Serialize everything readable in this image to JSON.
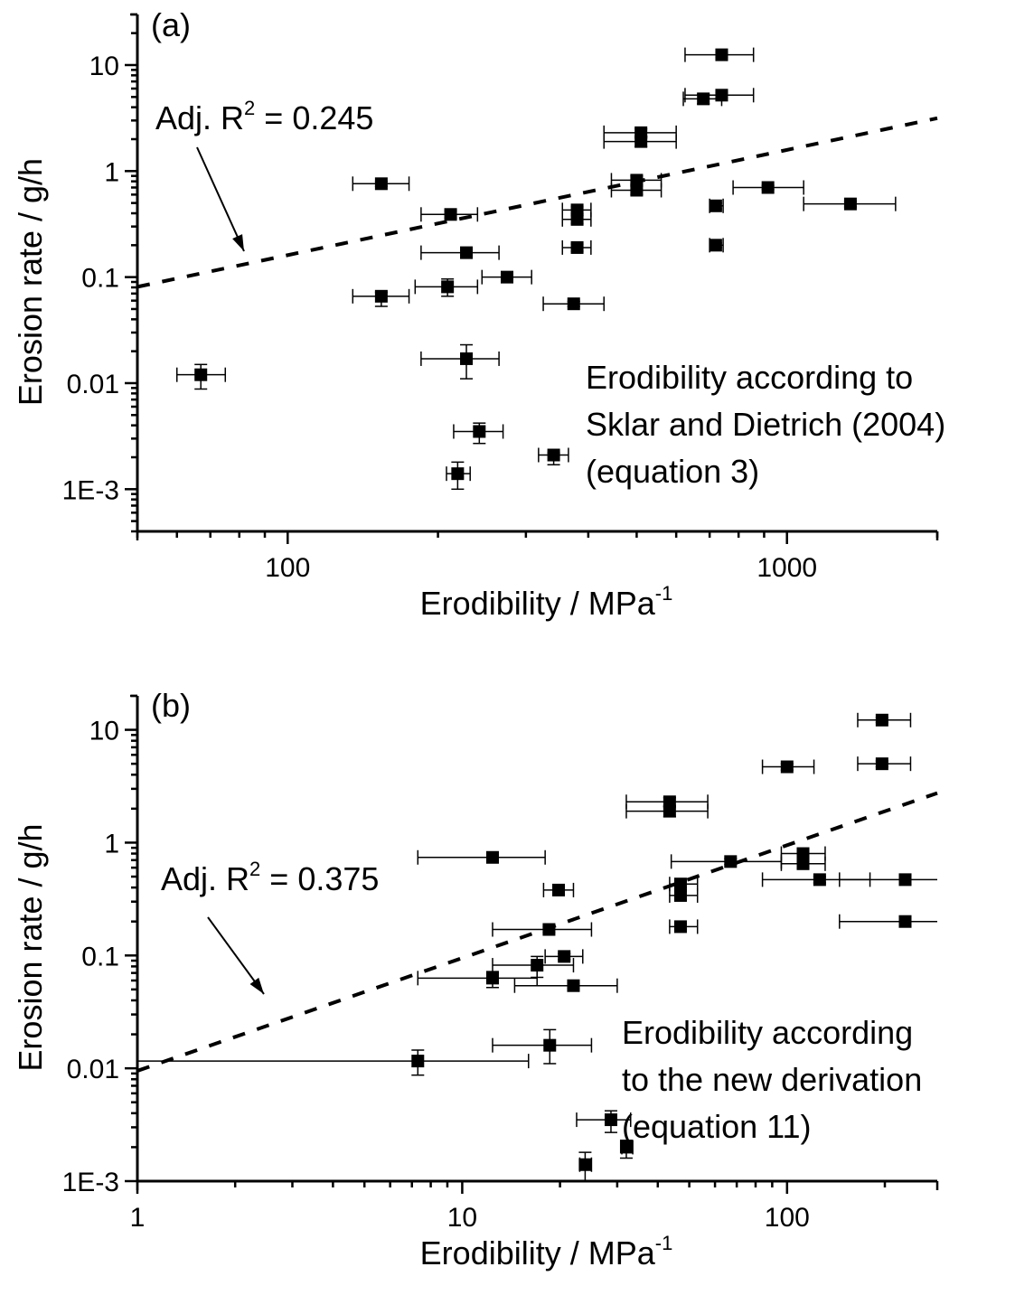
{
  "chart_data": [
    {
      "type": "scatter",
      "panel_label": "(a)",
      "xlabel": "Erodibility / MPa",
      "xlabel_sup": "-1",
      "ylabel": "Erosion rate / g/h",
      "xscale": "log",
      "yscale": "log",
      "xlim": [
        50,
        2000
      ],
      "ylim": [
        0.0004,
        30
      ],
      "xticks": [
        {
          "value": 100,
          "label": "100"
        },
        {
          "value": 1000,
          "label": "1000"
        }
      ],
      "yticks": [
        {
          "value": 0.001,
          "label": "1E-3"
        },
        {
          "value": 0.01,
          "label": "0.01"
        },
        {
          "value": 0.1,
          "label": "0.1"
        },
        {
          "value": 1,
          "label": "1"
        },
        {
          "value": 10,
          "label": "10"
        }
      ],
      "annotation_r2": {
        "prefix": "Adj. R",
        "sup": "2",
        "suffix": " = 0.245"
      },
      "annotation_method": [
        "Erodibility according to",
        "Sklar and Dietrich (2004)",
        "(equation 3)"
      ],
      "fit_line": {
        "style": "dashed",
        "x": [
          50,
          2000
        ],
        "y": [
          0.081,
          3.15
        ]
      },
      "points": [
        {
          "x": 740,
          "y": 12.5,
          "xerr": [
            625,
            857
          ],
          "yerr": [
            11.8,
            13.2
          ]
        },
        {
          "x": 680,
          "y": 4.8,
          "xerr": [
            620,
            740
          ],
          "yerr": [
            4.3,
            5.3
          ]
        },
        {
          "x": 740,
          "y": 5.2,
          "xerr": [
            625,
            857
          ],
          "yerr": [
            4.9,
            5.5
          ]
        },
        {
          "x": 510,
          "y": 2.3,
          "xerr": [
            430,
            600
          ],
          "yerr": [
            2.1,
            2.5
          ]
        },
        {
          "x": 510,
          "y": 1.9,
          "xerr": [
            430,
            600
          ],
          "yerr": [
            1.7,
            2.1
          ]
        },
        {
          "x": 500,
          "y": 0.82,
          "xerr": [
            445,
            560
          ],
          "yerr": [
            0.75,
            0.9
          ]
        },
        {
          "x": 500,
          "y": 0.66,
          "xerr": [
            445,
            560
          ],
          "yerr": [
            0.6,
            0.72
          ]
        },
        {
          "x": 380,
          "y": 0.43,
          "xerr": [
            355,
            405
          ],
          "yerr": [
            0.4,
            0.46
          ]
        },
        {
          "x": 380,
          "y": 0.35,
          "xerr": [
            355,
            405
          ],
          "yerr": [
            0.32,
            0.38
          ]
        },
        {
          "x": 380,
          "y": 0.19,
          "xerr": [
            355,
            405
          ],
          "yerr": [
            0.175,
            0.205
          ]
        },
        {
          "x": 154,
          "y": 0.76,
          "xerr": [
            135,
            175
          ],
          "yerr": [
            0.72,
            0.8
          ]
        },
        {
          "x": 212,
          "y": 0.39,
          "xerr": [
            185,
            240
          ],
          "yerr": [
            0.36,
            0.42
          ]
        },
        {
          "x": 228,
          "y": 0.17,
          "xerr": [
            185,
            265
          ],
          "yerr": [
            0.16,
            0.18
          ]
        },
        {
          "x": 275,
          "y": 0.1,
          "xerr": [
            245,
            308
          ],
          "yerr": [
            0.095,
            0.105
          ]
        },
        {
          "x": 209,
          "y": 0.081,
          "xerr": [
            180,
            240
          ],
          "yerr": [
            0.066,
            0.096
          ]
        },
        {
          "x": 154,
          "y": 0.066,
          "xerr": [
            135,
            175
          ],
          "yerr": [
            0.053,
            0.072
          ]
        },
        {
          "x": 374,
          "y": 0.056,
          "xerr": [
            325,
            430
          ],
          "yerr": [
            0.053,
            0.059
          ]
        },
        {
          "x": 228,
          "y": 0.017,
          "xerr": [
            185,
            265
          ],
          "yerr": [
            0.011,
            0.023
          ]
        },
        {
          "x": 67,
          "y": 0.012,
          "xerr": [
            60,
            75
          ],
          "yerr": [
            0.0088,
            0.015
          ]
        },
        {
          "x": 242,
          "y": 0.0035,
          "xerr": [
            215,
            270
          ],
          "yerr": [
            0.0027,
            0.0042
          ]
        },
        {
          "x": 341,
          "y": 0.0021,
          "xerr": [
            318,
            365
          ],
          "yerr": [
            0.0017,
            0.0022
          ]
        },
        {
          "x": 219,
          "y": 0.0014,
          "xerr": [
            208,
            232
          ],
          "yerr": [
            0.001,
            0.0018
          ]
        },
        {
          "x": 720,
          "y": 0.47,
          "xerr": [
            700,
            745
          ],
          "yerr": [
            0.44,
            0.5
          ]
        },
        {
          "x": 720,
          "y": 0.2,
          "xerr": [
            700,
            745
          ],
          "yerr": [
            0.19,
            0.21
          ]
        },
        {
          "x": 916,
          "y": 0.7,
          "xerr": [
            780,
            1080
          ],
          "yerr": [
            0.67,
            0.73
          ]
        },
        {
          "x": 1340,
          "y": 0.49,
          "xerr": [
            1080,
            1650
          ],
          "yerr": [
            0.46,
            0.52
          ]
        }
      ]
    },
    {
      "type": "scatter",
      "panel_label": "(b)",
      "xlabel": "Erodibility / MPa",
      "xlabel_sup": "-1",
      "ylabel": "Erosion rate / g/h",
      "xscale": "log",
      "yscale": "log",
      "xlim": [
        1,
        290
      ],
      "ylim": [
        0.001,
        20
      ],
      "xticks": [
        {
          "value": 1,
          "label": "1"
        },
        {
          "value": 10,
          "label": "10"
        },
        {
          "value": 100,
          "label": "100"
        }
      ],
      "yticks": [
        {
          "value": 0.001,
          "label": "1E-3"
        },
        {
          "value": 0.01,
          "label": "0.01"
        },
        {
          "value": 0.1,
          "label": "0.1"
        },
        {
          "value": 1,
          "label": "1"
        },
        {
          "value": 10,
          "label": "10"
        }
      ],
      "annotation_r2": {
        "prefix": "Adj. R",
        "sup": "2",
        "suffix": " = 0.375"
      },
      "annotation_method": [
        "Erodibility according",
        "to the new derivation",
        "(equation 11)"
      ],
      "fit_line": {
        "style": "dashed",
        "x": [
          1,
          290
        ],
        "y": [
          0.0095,
          2.75
        ]
      },
      "points": [
        {
          "x": 196,
          "y": 12.2,
          "xerr": [
            165,
            240
          ],
          "yerr": [
            11.6,
            12.8
          ]
        },
        {
          "x": 196,
          "y": 5.0,
          "xerr": [
            165,
            240
          ],
          "yerr": [
            4.7,
            5.3
          ]
        },
        {
          "x": 100,
          "y": 4.7,
          "xerr": [
            84,
            121
          ],
          "yerr": [
            4.4,
            5.0
          ]
        },
        {
          "x": 43.5,
          "y": 2.3,
          "xerr": [
            32,
            57
          ],
          "yerr": [
            2.1,
            2.5
          ]
        },
        {
          "x": 43.5,
          "y": 1.9,
          "xerr": [
            32,
            57
          ],
          "yerr": [
            1.7,
            2.1
          ]
        },
        {
          "x": 12.4,
          "y": 0.74,
          "xerr": [
            7.3,
            18
          ],
          "yerr": [
            0.7,
            0.78
          ]
        },
        {
          "x": 67,
          "y": 0.68,
          "xerr": [
            44,
            96
          ],
          "yerr": [
            0.64,
            0.72
          ]
        },
        {
          "x": 112,
          "y": 0.8,
          "xerr": [
            96,
            131
          ],
          "yerr": [
            0.75,
            0.85
          ]
        },
        {
          "x": 112,
          "y": 0.65,
          "xerr": [
            96,
            131
          ],
          "yerr": [
            0.6,
            0.7
          ]
        },
        {
          "x": 19.8,
          "y": 0.38,
          "xerr": [
            17.8,
            22
          ],
          "yerr": [
            0.35,
            0.41
          ]
        },
        {
          "x": 126,
          "y": 0.47,
          "xerr": [
            84,
            180
          ],
          "yerr": [
            0.44,
            0.5
          ]
        },
        {
          "x": 231,
          "y": 0.47,
          "xerr": [
            145,
            290
          ],
          "yerr": [
            0.44,
            0.5
          ]
        },
        {
          "x": 47,
          "y": 0.43,
          "xerr": [
            43.5,
            53
          ],
          "yerr": [
            0.4,
            0.46
          ]
        },
        {
          "x": 47,
          "y": 0.34,
          "xerr": [
            43.5,
            53
          ],
          "yerr": [
            0.31,
            0.37
          ]
        },
        {
          "x": 47,
          "y": 0.18,
          "xerr": [
            43.5,
            53
          ],
          "yerr": [
            0.17,
            0.19
          ]
        },
        {
          "x": 231,
          "y": 0.2,
          "xerr": [
            145,
            290
          ],
          "yerr": [
            0.19,
            0.21
          ]
        },
        {
          "x": 18.5,
          "y": 0.17,
          "xerr": [
            12.4,
            25
          ],
          "yerr": [
            0.16,
            0.18
          ]
        },
        {
          "x": 20.6,
          "y": 0.098,
          "xerr": [
            18,
            23.5
          ],
          "yerr": [
            0.092,
            0.104
          ]
        },
        {
          "x": 17,
          "y": 0.082,
          "xerr": [
            12.4,
            22
          ],
          "yerr": [
            0.064,
            0.098
          ]
        },
        {
          "x": 12.4,
          "y": 0.063,
          "xerr": [
            7.3,
            17
          ],
          "yerr": [
            0.052,
            0.072
          ]
        },
        {
          "x": 22,
          "y": 0.054,
          "xerr": [
            14.5,
            30
          ],
          "yerr": [
            0.051,
            0.057
          ]
        },
        {
          "x": 18.6,
          "y": 0.016,
          "xerr": [
            12.4,
            25
          ],
          "yerr": [
            0.011,
            0.022
          ]
        },
        {
          "x": 7.3,
          "y": 0.0116,
          "xerr": [
            1,
            16
          ],
          "yerr": [
            0.0087,
            0.0145
          ]
        },
        {
          "x": 28.7,
          "y": 0.0035,
          "xerr": [
            22.5,
            33
          ],
          "yerr": [
            0.0027,
            0.0042
          ]
        },
        {
          "x": 32,
          "y": 0.002,
          "xerr": [
            31,
            33.5
          ],
          "yerr": [
            0.0016,
            0.0023
          ]
        },
        {
          "x": 23.9,
          "y": 0.0014,
          "xerr": [
            23,
            25
          ],
          "yerr": [
            0.001,
            0.0018
          ]
        }
      ]
    }
  ]
}
